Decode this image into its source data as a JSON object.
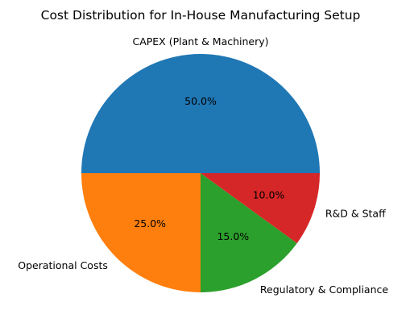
{
  "chart_data": {
    "type": "pie",
    "title": "Cost Distribution for In-House Manufacturing Setup",
    "categories": [
      "CAPEX (Plant & Machinery)",
      "Operational Costs",
      "Regulatory & Compliance",
      "R&D & Staff"
    ],
    "values": [
      50,
      25,
      15,
      10
    ],
    "percent_labels": [
      "50.0%",
      "25.0%",
      "15.0%",
      "10.0%"
    ],
    "colors": [
      "#1f77b4",
      "#ff7f0e",
      "#2ca02c",
      "#d62728"
    ],
    "start_angle_deg": 0,
    "direction": "counterclockwise",
    "legend": "none"
  }
}
